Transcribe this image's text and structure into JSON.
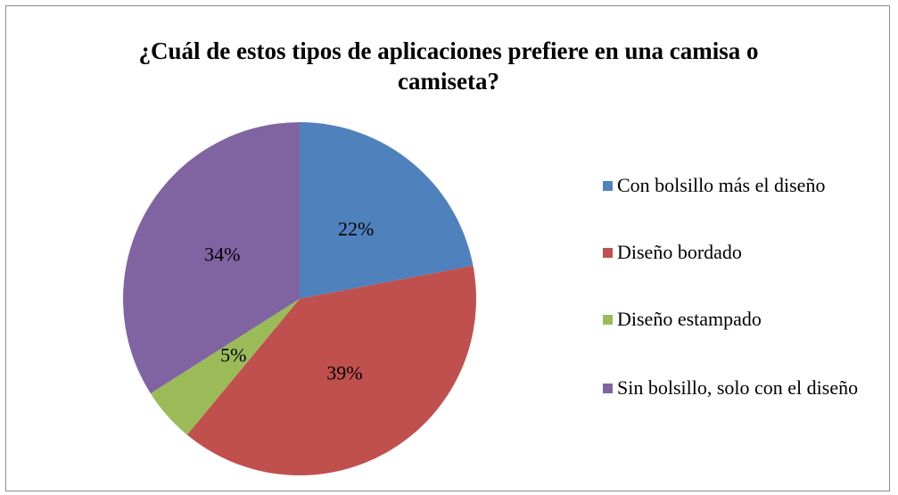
{
  "chart_data": {
    "type": "pie",
    "title": "¿Cuál de estos tipos de aplicaciones prefiere en una camisa o camiseta?",
    "categories": [
      "Con bolsillo más el diseño",
      "Diseño bordado",
      "Diseño estampado",
      "Sin bolsillo, solo con el diseño"
    ],
    "values": [
      22,
      39,
      5,
      34
    ],
    "value_labels": [
      "22%",
      "39%",
      "5%",
      "34%"
    ],
    "colors": [
      "#4f81bd",
      "#c0504d",
      "#9bbb59",
      "#8064a2"
    ],
    "legend": "right"
  }
}
